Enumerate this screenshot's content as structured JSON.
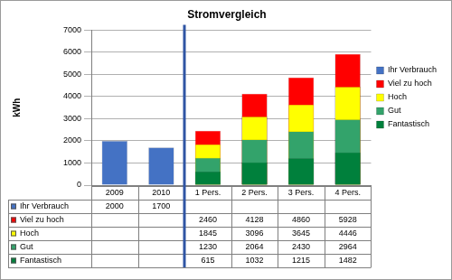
{
  "chart_data": {
    "type": "bar",
    "title": "Stromvergleich",
    "ylabel": "kWh",
    "categories": [
      "2009",
      "2010",
      "1 Pers.",
      "2 Pers.",
      "3 Pers.",
      "4 Pers."
    ],
    "series": [
      {
        "name": "Ihr Verbrauch",
        "color": "#4472c4",
        "values": [
          2000,
          1700,
          null,
          null,
          null,
          null
        ]
      },
      {
        "name": "Viel zu hoch",
        "color": "#ff0000",
        "values": [
          null,
          null,
          2460,
          4128,
          4860,
          5928
        ]
      },
      {
        "name": "Hoch",
        "color": "#ffff00",
        "values": [
          null,
          null,
          1845,
          3096,
          3645,
          4446
        ]
      },
      {
        "name": "Gut",
        "color": "#33a36b",
        "values": [
          null,
          null,
          1230,
          2064,
          2430,
          2964
        ]
      },
      {
        "name": "Fantastisch",
        "color": "#00803c",
        "values": [
          null,
          null,
          615,
          1032,
          1215,
          1482
        ]
      }
    ],
    "ylim": [
      0,
      7000
    ],
    "yticks": [
      0,
      1000,
      2000,
      3000,
      4000,
      5000,
      6000,
      7000
    ],
    "grid": true,
    "legend": "right",
    "stacked": false
  }
}
